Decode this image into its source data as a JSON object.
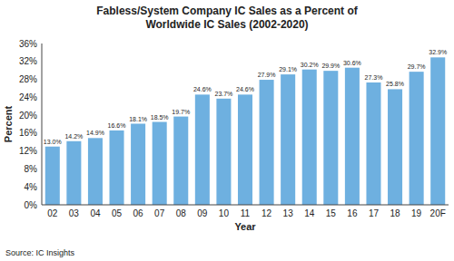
{
  "chart_data": {
    "type": "bar",
    "title": "Fabless/System Company IC Sales as a Percent of\nWorldwide IC Sales (2002-2020)",
    "x_label": "Year",
    "y_label": "Percent",
    "annotations": [
      "Source: IC Insights"
    ],
    "categories": [
      "02",
      "03",
      "04",
      "05",
      "06",
      "07",
      "08",
      "09",
      "10",
      "11",
      "12",
      "13",
      "14",
      "15",
      "16",
      "17",
      "18",
      "19",
      "20F"
    ],
    "values": [
      13.0,
      14.2,
      14.9,
      16.6,
      18.1,
      18.5,
      19.7,
      24.6,
      23.7,
      24.6,
      27.9,
      29.1,
      30.2,
      29.9,
      30.6,
      27.3,
      25.8,
      29.7,
      32.9
    ],
    "value_labels": [
      "13.0%",
      "14.2%",
      "14.9%",
      "16.6%",
      "18.1%",
      "18.5%",
      "19.7%",
      "24.6%",
      "23.7%",
      "24.6%",
      "27.9%",
      "29.1%",
      "30.2%",
      "29.9%",
      "30.6%",
      "27.3%",
      "25.8%",
      "29.7%",
      "32.9%"
    ],
    "data_labels": true,
    "color": "#6eb0e0",
    "ylim": [
      0,
      36
    ],
    "yticks": [
      {
        "value": 0,
        "label": "0%"
      },
      {
        "value": 4,
        "label": "4%"
      },
      {
        "value": 8,
        "label": "8%"
      },
      {
        "value": 12,
        "label": "12%"
      },
      {
        "value": 16,
        "label": "16%"
      },
      {
        "value": 20,
        "label": "20%"
      },
      {
        "value": 24,
        "label": "24%"
      },
      {
        "value": 28,
        "label": "28%"
      },
      {
        "value": 32,
        "label": "32%"
      },
      {
        "value": 36,
        "label": "36%"
      }
    ],
    "grid": false
  }
}
